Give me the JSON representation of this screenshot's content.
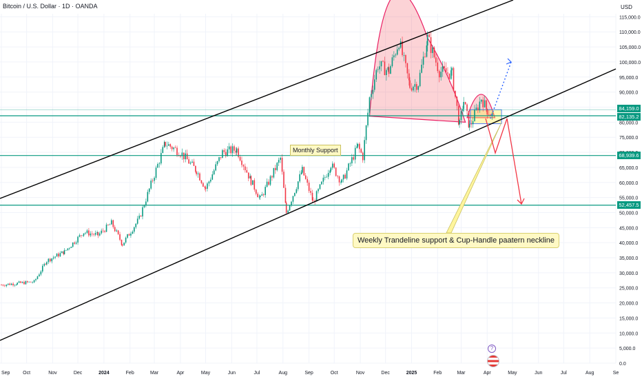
{
  "title": "Bitcoin / U.S. Dollar · 1D · OANDA",
  "currency": "USD",
  "chart_data": {
    "type": "candlestick",
    "x_axis_labels": [
      "Sep",
      "Oct",
      "Nov",
      "Dec",
      "2024",
      "Feb",
      "Mar",
      "Apr",
      "May",
      "Jun",
      "Jul",
      "Aug",
      "Sep",
      "Oct",
      "Nov",
      "Dec",
      "2025",
      "Feb",
      "Mar",
      "Apr",
      "May",
      "Jun",
      "Jul",
      "Aug",
      "Se"
    ],
    "y_axis_labels": [
      "115,000.0",
      "110,000.0",
      "105,000.0",
      "100,000.0",
      "95,000.0",
      "90,000.0",
      "85,000.0",
      "80,000.0",
      "75,000.0",
      "70,000.0",
      "65,000.0",
      "60,000.0",
      "55,000.0",
      "50,000.0",
      "45,000.0",
      "40,000.0",
      "35,000.0",
      "30,000.0",
      "25,000.0",
      "20,000.0",
      "15,000.0",
      "10,000.0",
      "5,000.0",
      "0.0"
    ],
    "ylim": [
      0,
      116000
    ],
    "price_series": [
      [
        "2023-09-01",
        26000
      ],
      [
        "2023-09-20",
        26500
      ],
      [
        "2023-10-10",
        27000
      ],
      [
        "2023-10-25",
        34000
      ],
      [
        "2023-11-15",
        37000
      ],
      [
        "2023-12-08",
        43500
      ],
      [
        "2023-12-25",
        42500
      ],
      [
        "2024-01-10",
        46500
      ],
      [
        "2024-01-23",
        39500
      ],
      [
        "2024-02-12",
        48000
      ],
      [
        "2024-02-28",
        61000
      ],
      [
        "2024-03-14",
        73000
      ],
      [
        "2024-04-01",
        70000
      ],
      [
        "2024-04-20",
        64000
      ],
      [
        "2024-05-01",
        58000
      ],
      [
        "2024-05-21",
        70000
      ],
      [
        "2024-06-07",
        71000
      ],
      [
        "2024-06-24",
        60500
      ],
      [
        "2024-07-05",
        54500
      ],
      [
        "2024-07-29",
        68000
      ],
      [
        "2024-08-05",
        50000
      ],
      [
        "2024-08-24",
        64000
      ],
      [
        "2024-09-06",
        53500
      ],
      [
        "2024-09-27",
        66000
      ],
      [
        "2024-10-10",
        60000
      ],
      [
        "2024-10-29",
        72000
      ],
      [
        "2024-11-04",
        68500
      ],
      [
        "2024-11-12",
        88000
      ],
      [
        "2024-11-22",
        99000
      ],
      [
        "2024-12-05",
        97000
      ],
      [
        "2024-12-17",
        107000
      ],
      [
        "2024-12-30",
        92000
      ],
      [
        "2025-01-09",
        93000
      ],
      [
        "2025-01-20",
        108000
      ],
      [
        "2025-02-03",
        97000
      ],
      [
        "2025-02-18",
        96000
      ],
      [
        "2025-02-27",
        79000
      ],
      [
        "2025-03-04",
        87000
      ],
      [
        "2025-03-11",
        78500
      ],
      [
        "2025-03-25",
        88000
      ],
      [
        "2025-04-01",
        84000
      ],
      [
        "2025-04-08",
        82000
      ]
    ],
    "horizontal_levels": [
      {
        "price": 84159.0,
        "label": "84,159.0"
      },
      {
        "price": 82135.2,
        "label": "82,135.2"
      },
      {
        "price": 68939.6,
        "label": "68,939.6"
      },
      {
        "price": 52457.5,
        "label": "52,457.5"
      }
    ],
    "annotations": [
      {
        "text": "Monthly Support"
      },
      {
        "text": "Weekly Trandeline support & Cup-Handle paatern neckline"
      }
    ]
  }
}
